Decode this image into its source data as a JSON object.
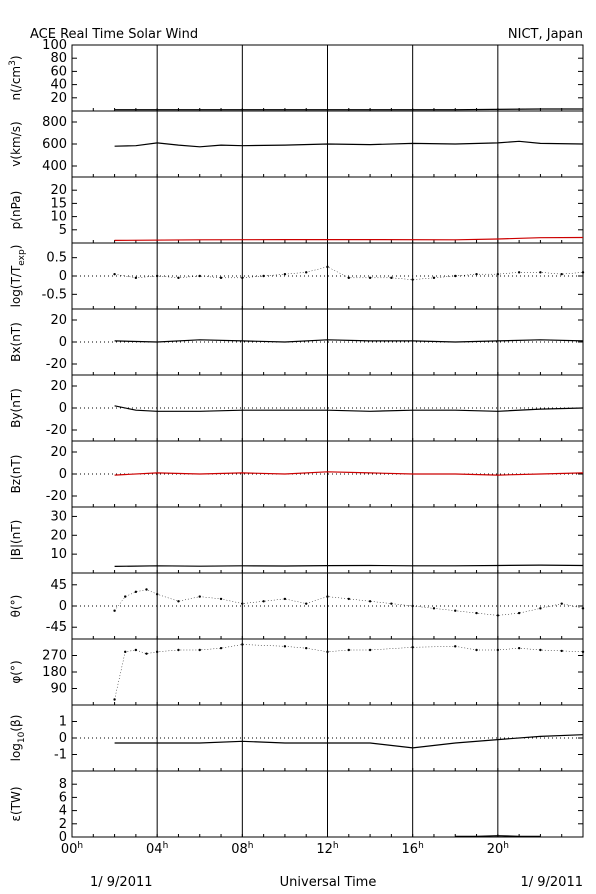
{
  "header": {
    "title": "ACE Real Time Solar Wind",
    "source": "NICT, Japan"
  },
  "footer": {
    "date_left": "1/ 9/2011",
    "xlabel": "Universal Time",
    "date_right": "1/ 9/2011"
  },
  "colors": {
    "default": "#000000",
    "highlight": "#cc0000"
  },
  "chart_data": {
    "type": "line",
    "x_unit": "hours UT",
    "xlim": [
      0,
      24
    ],
    "x_ticks": [
      0,
      4,
      8,
      12,
      16,
      20
    ],
    "x_tick_labels": [
      "00",
      "04",
      "08",
      "12",
      "16",
      "20"
    ],
    "x_tick_suffix": "h",
    "data_start_hour": 2,
    "panels": [
      {
        "id": "n",
        "ylabel_main": "n(/cm",
        "ylabel_sup": "3",
        "ylabel_end": ")",
        "ylim": [
          0,
          100
        ],
        "ticks": [
          20,
          40,
          60,
          80,
          100
        ],
        "tick_labels": [
          "20",
          "40",
          "60",
          "80",
          "100"
        ],
        "zero_line": false,
        "color": "#000000",
        "style": "line",
        "x": [
          2,
          6,
          10,
          14,
          18,
          22,
          24
        ],
        "y": [
          2,
          2,
          2,
          2,
          2,
          3,
          3
        ]
      },
      {
        "id": "v",
        "ylabel_main": "v(km/s)",
        "ylim": [
          300,
          900
        ],
        "ticks": [
          400,
          600,
          800
        ],
        "tick_labels": [
          "400",
          "600",
          "800"
        ],
        "zero_line": false,
        "color": "#000000",
        "style": "line",
        "x": [
          2,
          3,
          4,
          5,
          6,
          7,
          8,
          10,
          12,
          14,
          16,
          18,
          20,
          21,
          22,
          24
        ],
        "y": [
          580,
          585,
          610,
          590,
          575,
          590,
          585,
          590,
          600,
          595,
          605,
          600,
          610,
          625,
          605,
          600
        ]
      },
      {
        "id": "p",
        "ylabel_main": "p(nPa)",
        "ylim": [
          0,
          25
        ],
        "ticks": [
          5,
          10,
          15,
          20
        ],
        "tick_labels": [
          "5",
          "10",
          "15",
          "20"
        ],
        "zero_line": false,
        "color": "#cc0000",
        "style": "line",
        "x": [
          2,
          6,
          10,
          14,
          18,
          20,
          22,
          24
        ],
        "y": [
          1.0,
          1.2,
          1.3,
          1.3,
          1.2,
          1.5,
          2.0,
          2.1
        ]
      },
      {
        "id": "temp",
        "ylabel_main": "log(T/T",
        "ylabel_sub": "exp",
        "ylabel_end": ")",
        "ylim": [
          -0.9,
          0.9
        ],
        "ticks": [
          -0.5,
          0,
          0.5
        ],
        "tick_labels": [
          "-0.5",
          "0",
          "0.5"
        ],
        "zero_line": true,
        "color": "#000000",
        "style": "dots",
        "x": [
          2,
          3,
          4,
          5,
          6,
          7,
          8,
          9,
          10,
          11,
          12,
          13,
          14,
          15,
          16,
          17,
          18,
          19,
          20,
          21,
          22,
          23,
          24
        ],
        "y": [
          0.05,
          -0.05,
          0.0,
          -0.05,
          0.0,
          -0.05,
          -0.05,
          0.0,
          0.05,
          0.1,
          0.25,
          -0.05,
          -0.05,
          -0.05,
          -0.1,
          -0.05,
          0.0,
          0.05,
          0.05,
          0.1,
          0.1,
          0.05,
          0.1
        ]
      },
      {
        "id": "bx",
        "ylabel_main": "Bx(nT)",
        "ylim": [
          -30,
          30
        ],
        "ticks": [
          -20,
          0,
          20
        ],
        "tick_labels": [
          "-20",
          "0",
          "20"
        ],
        "zero_line": true,
        "color": "#000000",
        "style": "line",
        "x": [
          2,
          4,
          6,
          8,
          10,
          12,
          14,
          16,
          18,
          20,
          22,
          24
        ],
        "y": [
          1,
          0,
          2,
          1,
          0,
          2,
          1,
          1,
          0,
          1,
          2,
          1
        ]
      },
      {
        "id": "by",
        "ylabel_main": "By(nT)",
        "ylim": [
          -30,
          30
        ],
        "ticks": [
          -20,
          0,
          20
        ],
        "tick_labels": [
          "-20",
          "0",
          "20"
        ],
        "zero_line": true,
        "color": "#000000",
        "style": "line",
        "x": [
          2,
          3,
          4,
          6,
          8,
          10,
          12,
          14,
          16,
          18,
          20,
          22,
          24
        ],
        "y": [
          2,
          -2,
          -3,
          -3,
          -2,
          -2,
          -2,
          -3,
          -2,
          -2,
          -3,
          -1,
          0
        ]
      },
      {
        "id": "bz",
        "ylabel_main": "Bz(nT)",
        "ylim": [
          -30,
          30
        ],
        "ticks": [
          -20,
          0,
          20
        ],
        "tick_labels": [
          "-20",
          "0",
          "20"
        ],
        "zero_line": true,
        "color": "#cc0000",
        "style": "line",
        "x": [
          2,
          4,
          6,
          8,
          10,
          12,
          14,
          16,
          18,
          20,
          22,
          24
        ],
        "y": [
          -1,
          1,
          0,
          1,
          0,
          2,
          1,
          0,
          0,
          -1,
          0,
          1
        ]
      },
      {
        "id": "bt",
        "ylabel_main": "|B|(nT)",
        "ylim": [
          0,
          35
        ],
        "ticks": [
          10,
          20,
          30
        ],
        "tick_labels": [
          "10",
          "20",
          "30"
        ],
        "zero_line": false,
        "color": "#000000",
        "style": "line",
        "x": [
          2,
          4,
          6,
          8,
          10,
          12,
          14,
          16,
          18,
          20,
          22,
          24
        ],
        "y": [
          3.5,
          3.8,
          3.6,
          3.8,
          3.7,
          3.9,
          4.0,
          3.8,
          3.8,
          4.0,
          4.2,
          4.0
        ]
      },
      {
        "id": "theta",
        "ylabel_main": "θ(°)",
        "ylim": [
          -70,
          70
        ],
        "ticks": [
          -45,
          0,
          45
        ],
        "tick_labels": [
          "-45",
          "0",
          "45"
        ],
        "zero_line": true,
        "color": "#000000",
        "style": "dots",
        "x": [
          2,
          2.5,
          3,
          3.5,
          4,
          5,
          6,
          7,
          8,
          9,
          10,
          11,
          12,
          13,
          14,
          15,
          16,
          17,
          18,
          19,
          20,
          21,
          22,
          23,
          24
        ],
        "y": [
          -10,
          20,
          30,
          35,
          25,
          10,
          20,
          15,
          5,
          10,
          15,
          5,
          20,
          15,
          10,
          5,
          0,
          -5,
          -10,
          -15,
          -20,
          -15,
          -5,
          5,
          -5
        ]
      },
      {
        "id": "phi",
        "ylabel_main": "φ(°)",
        "ylim": [
          0,
          360
        ],
        "ticks": [
          90,
          180,
          270
        ],
        "tick_labels": [
          "90",
          "180",
          "270"
        ],
        "zero_line": false,
        "color": "#000000",
        "style": "dots",
        "x": [
          2,
          2.5,
          3,
          3.5,
          4,
          5,
          6,
          7,
          8,
          10,
          11,
          12,
          13,
          14,
          16,
          18,
          19,
          20,
          21,
          22,
          23,
          24
        ],
        "y": [
          30,
          290,
          300,
          280,
          290,
          300,
          300,
          310,
          330,
          320,
          310,
          290,
          300,
          300,
          315,
          320,
          300,
          300,
          310,
          300,
          295,
          290
        ]
      },
      {
        "id": "beta",
        "ylabel_main": "log",
        "ylabel_sub": "10",
        "ylabel_end": "(β)",
        "ylim": [
          -2,
          2
        ],
        "ticks": [
          -1,
          0,
          1
        ],
        "tick_labels": [
          "-1",
          "0",
          "1"
        ],
        "zero_line": true,
        "color": "#000000",
        "style": "line",
        "x": [
          2,
          4,
          6,
          8,
          10,
          12,
          14,
          16,
          18,
          20,
          22,
          24
        ],
        "y": [
          -0.3,
          -0.3,
          -0.3,
          -0.2,
          -0.3,
          -0.3,
          -0.3,
          -0.6,
          -0.3,
          -0.1,
          0.1,
          0.2
        ]
      },
      {
        "id": "eps",
        "ylabel_main": "ε(TW)",
        "ylim": [
          0,
          10
        ],
        "ticks": [
          0,
          2,
          4,
          6,
          8
        ],
        "tick_labels": [
          "0",
          "2",
          "4",
          "6",
          "8"
        ],
        "zero_line": false,
        "color": "#000000",
        "style": "line",
        "x": [
          18,
          19,
          20,
          21,
          22
        ],
        "y": [
          0.1,
          0.1,
          0.2,
          0.1,
          0.1
        ]
      }
    ]
  }
}
